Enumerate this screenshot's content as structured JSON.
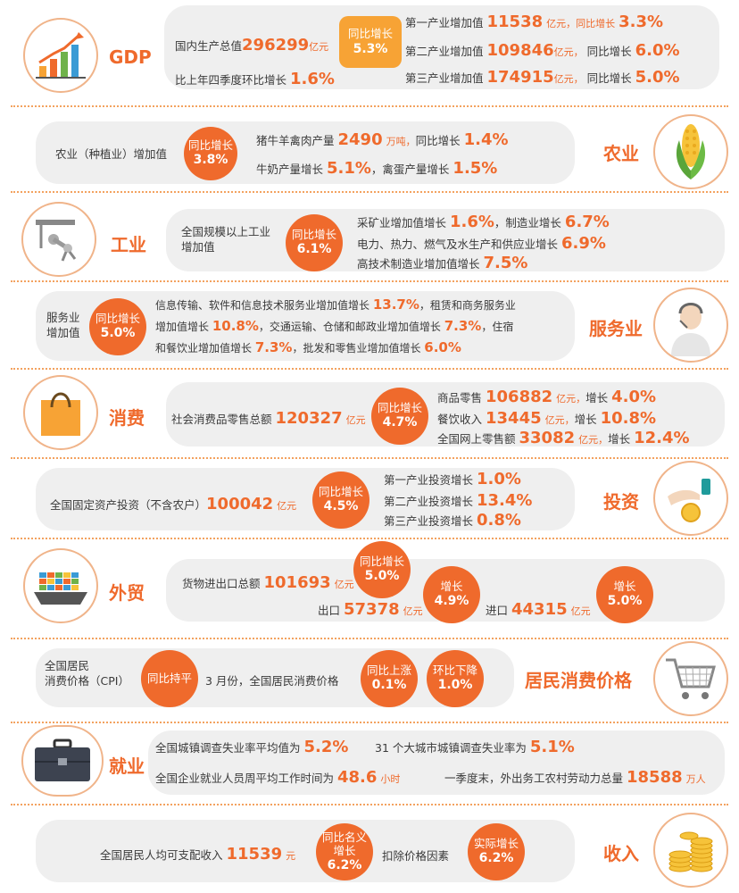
{
  "gdp": {
    "title": "GDP",
    "total_label": "国内生产总值",
    "total_value": "296299",
    "total_unit": "亿元",
    "badge_l1": "同比增长",
    "badge_l2": "5.3%",
    "qoq_label": "比上年四季度环比增长",
    "qoq_value": "1.6%",
    "rows": [
      {
        "label": "第一产业增加值",
        "value": "11538",
        "unit": "亿元，同比增长",
        "rate": "3.3%"
      },
      {
        "label": "第二产业增加值",
        "value": "109846",
        "unit": "亿元，",
        "sub": "同比增长",
        "rate": "6.0%"
      },
      {
        "label": "第三产业增加值",
        "value": "174915",
        "unit": "亿元，",
        "sub": "同比增长",
        "rate": "5.0%"
      }
    ]
  },
  "agri": {
    "title": "农业",
    "label": "农业（种植业）增加值",
    "badge_l1": "同比增长",
    "badge_l2": "3.8%",
    "line1_a": "猪牛羊禽肉产量",
    "line1_v": "2490",
    "line1_u": "万吨，",
    "line1_b": "同比增长",
    "line1_r": "1.4%",
    "line2_a": "牛奶产量增长",
    "line2_r": "5.1%",
    "line2_b": "，禽蛋产量增长",
    "line2_r2": "1.5%"
  },
  "industry": {
    "title": "工业",
    "label_l1": "全国规模以上工业",
    "label_l2": "增加值",
    "badge_l1": "同比增长",
    "badge_l2": "6.1%",
    "l1_a": "采矿业增加值增长",
    "l1_r": "1.6%",
    "l1_b": "，制造业增长",
    "l1_r2": "6.7%",
    "l2_a": "电力、热力、燃气及水生产和供应业增长",
    "l2_r": "6.9%",
    "l3_a": "高技术制造业增加值增长",
    "l3_r": "7.5%"
  },
  "service": {
    "title": "服务业",
    "label_l1": "服务业",
    "label_l2": "增加值",
    "badge_l1": "同比增长",
    "badge_l2": "5.0%",
    "l1_a": "信息传输、软件和信息技术服务业增加值增长",
    "l1_r": "13.7%",
    "l1_b": "，租赁和商务服务业",
    "l2_a": "增加值增长",
    "l2_r": "10.8%",
    "l2_b": "，交通运输、仓储和邮政业增加值增长",
    "l2_r2": "7.3%",
    "l2_c": "，住宿",
    "l3_a": "和餐饮业增加值增长",
    "l3_r": "7.3%",
    "l3_b": "，批发和零售业增加值增长",
    "l3_r2": "6.0%"
  },
  "consumption": {
    "title": "消费",
    "label": "社会消费品零售总额",
    "value": "120327",
    "unit": "亿元",
    "badge_l1": "同比增长",
    "badge_l2": "4.7%",
    "rows": [
      {
        "label": "商品零售",
        "value": "106882",
        "unit": "亿元，",
        "sub": "增长",
        "rate": "4.0%"
      },
      {
        "label": "餐饮收入",
        "value": "13445",
        "unit": "亿元，",
        "sub": "增长",
        "rate": "10.8%"
      },
      {
        "label": "全国网上零售额",
        "value": "33082",
        "unit": "亿元，",
        "sub": "增长",
        "rate": "12.4%"
      }
    ]
  },
  "investment": {
    "title": "投资",
    "label": "全国固定资产投资（不含农户）",
    "value": "100042",
    "unit": "亿元",
    "badge_l1": "同比增长",
    "badge_l2": "4.5%",
    "rows": [
      {
        "label": "第一产业投资增长",
        "rate": "1.0%"
      },
      {
        "label": "第二产业投资增长",
        "rate": "13.4%"
      },
      {
        "label": "第三产业投资增长",
        "rate": "0.8%"
      }
    ]
  },
  "trade": {
    "title": "外贸",
    "label": "货物进出口总额",
    "value": "101693",
    "unit": "亿元",
    "badge_l1": "同比增长",
    "badge_l2": "5.0%",
    "export_label": "出口",
    "export_value": "57378",
    "export_unit": "亿元",
    "export_badge_l1": "增长",
    "export_badge_l2": "4.9%",
    "import_label": "进口",
    "import_value": "44315",
    "import_unit": "亿元",
    "import_badge_l1": "增长",
    "import_badge_l2": "5.0%"
  },
  "cpi": {
    "title": "居民消费价格",
    "label_l1": "全国居民",
    "label_l2": "消费价格（CPI）",
    "flat_l1": "同比持平",
    "mid_label": "3 月份，全国居民消费价格",
    "yoy_l1": "同比上涨",
    "yoy_l2": "0.1%",
    "mom_l1": "环比下降",
    "mom_l2": "1.0%"
  },
  "employment": {
    "title": "就业",
    "l1_a": "全国城镇调查失业率平均值为",
    "l1_r": "5.2%",
    "l1_b": "31 个大城市城镇调查失业率为",
    "l1_r2": "5.1%",
    "l2_a": "全国企业就业人员周平均工作时间为",
    "l2_v": "48.6",
    "l2_u": "小时",
    "l2_b": "一季度末，外出务工农村劳动力总量",
    "l2_v2": "18588",
    "l2_u2": "万人"
  },
  "income": {
    "title": "收入",
    "label": "全国居民人均可支配收入",
    "value": "11539",
    "unit": "元",
    "badge_l1": "同比名义",
    "badge_l2": "增长",
    "badge_l3": "6.2%",
    "mid_label": "扣除价格因素",
    "real_l1": "实际增长",
    "real_l2": "6.2%"
  },
  "colors": {
    "accent": "#ef6a2c",
    "badge": "#f7a335",
    "panel": "#efefef",
    "divider": "#f3a25f"
  }
}
